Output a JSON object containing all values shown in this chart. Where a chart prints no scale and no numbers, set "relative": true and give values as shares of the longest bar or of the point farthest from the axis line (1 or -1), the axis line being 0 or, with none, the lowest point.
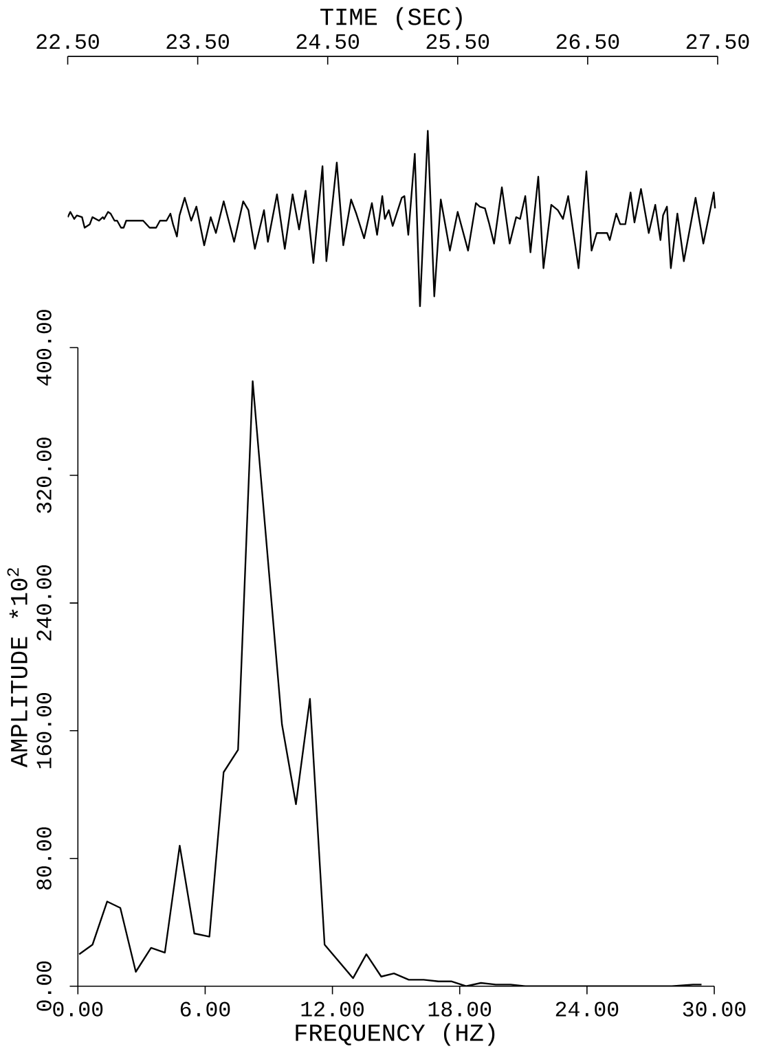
{
  "chart_data": [
    {
      "type": "line",
      "xlabel": "TIME (SEC)",
      "relative": true,
      "color": "#000000",
      "xlim": [
        22.5,
        27.5
      ],
      "xticks": [
        {
          "value": 22.5,
          "label": "22.50"
        },
        {
          "value": 23.5,
          "label": "23.50"
        },
        {
          "value": 24.5,
          "label": "24.50"
        },
        {
          "value": 25.5,
          "label": "25.50"
        },
        {
          "value": 26.5,
          "label": "26.50"
        },
        {
          "value": 27.5,
          "label": "27.50"
        }
      ],
      "x": [
        22.5,
        22.52,
        22.55,
        22.57,
        22.61,
        22.63,
        22.67,
        22.69,
        22.74,
        22.77,
        22.78,
        22.81,
        22.83,
        22.86,
        22.88,
        22.91,
        22.93,
        22.95,
        23.08,
        23.13,
        23.18,
        23.21,
        23.26,
        23.29,
        23.31,
        23.34,
        23.36,
        23.4,
        23.45,
        23.49,
        23.55,
        23.6,
        23.64,
        23.7,
        23.78,
        23.85,
        23.89,
        23.94,
        24.01,
        24.04,
        24.11,
        24.17,
        24.23,
        24.28,
        24.33,
        24.39,
        24.46,
        24.49,
        24.57,
        24.62,
        24.68,
        24.72,
        24.78,
        24.84,
        24.88,
        24.92,
        24.94,
        24.97,
        25.0,
        25.07,
        25.09,
        25.12,
        25.17,
        25.21,
        25.27,
        25.32,
        25.37,
        25.44,
        25.5,
        25.58,
        25.64,
        25.67,
        25.71,
        25.74,
        25.78,
        25.84,
        25.9,
        25.95,
        25.98,
        26.02,
        26.06,
        26.12,
        26.16,
        26.22,
        26.27,
        26.31,
        26.35,
        26.43,
        26.49,
        26.53,
        26.57,
        26.65,
        26.67,
        26.72,
        26.75,
        26.79,
        26.83,
        26.86,
        26.91,
        26.97,
        27.02,
        27.06,
        27.08,
        27.11,
        27.14,
        27.19,
        27.24,
        27.33,
        27.39,
        27.47,
        27.48
      ],
      "values": [
        0.51,
        0.54,
        0.5,
        0.52,
        0.51,
        0.45,
        0.47,
        0.51,
        0.49,
        0.51,
        0.5,
        0.54,
        0.53,
        0.49,
        0.49,
        0.45,
        0.45,
        0.49,
        0.49,
        0.45,
        0.45,
        0.49,
        0.49,
        0.53,
        0.47,
        0.4,
        0.52,
        0.62,
        0.49,
        0.57,
        0.35,
        0.51,
        0.42,
        0.6,
        0.37,
        0.6,
        0.55,
        0.33,
        0.55,
        0.37,
        0.64,
        0.33,
        0.64,
        0.44,
        0.66,
        0.25,
        0.8,
        0.26,
        0.82,
        0.35,
        0.61,
        0.53,
        0.39,
        0.59,
        0.41,
        0.63,
        0.5,
        0.55,
        0.46,
        0.62,
        0.63,
        0.41,
        0.87,
        0.0,
        1.0,
        0.06,
        0.61,
        0.32,
        0.54,
        0.32,
        0.59,
        0.57,
        0.56,
        0.48,
        0.36,
        0.68,
        0.36,
        0.51,
        0.5,
        0.63,
        0.31,
        0.74,
        0.22,
        0.58,
        0.55,
        0.5,
        0.63,
        0.22,
        0.77,
        0.32,
        0.42,
        0.42,
        0.38,
        0.53,
        0.47,
        0.47,
        0.65,
        0.48,
        0.67,
        0.42,
        0.58,
        0.38,
        0.52,
        0.57,
        0.22,
        0.53,
        0.26,
        0.62,
        0.36,
        0.65,
        0.56
      ]
    },
    {
      "type": "line",
      "xlabel": "FREQUENCY (HZ)",
      "ylabel": "AMPLITUDE  *10$^{2}$",
      "color": "#000000",
      "xlim": [
        0,
        30
      ],
      "ylim": [
        0,
        400
      ],
      "xticks": [
        {
          "value": 0,
          "label": "0.00"
        },
        {
          "value": 6,
          "label": "6.00"
        },
        {
          "value": 12,
          "label": "12.00"
        },
        {
          "value": 18,
          "label": "18.00"
        },
        {
          "value": 24,
          "label": "24.00"
        },
        {
          "value": 30,
          "label": "30.00"
        }
      ],
      "yticks": [
        {
          "value": 0,
          "label": "0.00"
        },
        {
          "value": 80,
          "label": "80.00"
        },
        {
          "value": 160,
          "label": "160.00"
        },
        {
          "value": 240,
          "label": "240.00"
        },
        {
          "value": 320,
          "label": "320.00"
        },
        {
          "value": 400,
          "label": "400.00"
        }
      ],
      "x": [
        0.06,
        0.69,
        1.38,
        2.0,
        2.73,
        3.45,
        4.1,
        4.8,
        5.49,
        6.2,
        6.87,
        7.55,
        8.24,
        9.62,
        10.28,
        10.94,
        11.63,
        12.97,
        13.6,
        14.3,
        14.9,
        15.6,
        16.3,
        17.0,
        17.6,
        18.3,
        19.0,
        19.7,
        20.4,
        21.1,
        22.0,
        24.0,
        26.0,
        28.0,
        29.0,
        29.4
      ],
      "values": [
        20,
        26,
        53,
        49,
        9,
        24,
        21,
        88,
        33,
        31,
        134,
        148,
        379,
        164,
        114,
        180,
        26,
        5,
        20,
        6,
        8,
        4,
        4,
        3,
        3,
        0,
        2,
        1,
        1,
        0,
        0,
        0,
        0,
        0,
        1,
        1
      ]
    }
  ]
}
